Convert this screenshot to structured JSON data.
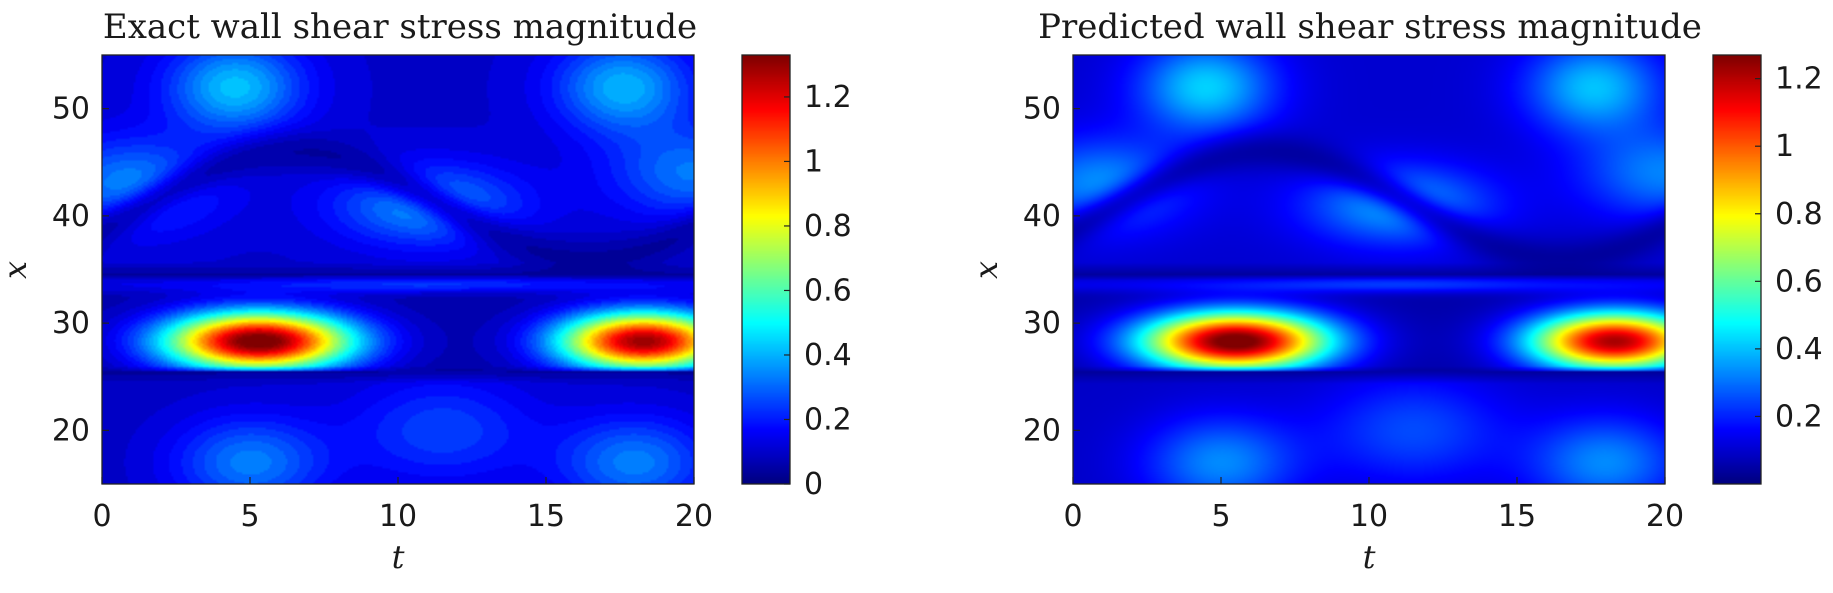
{
  "chart_data": [
    {
      "type": "heatmap",
      "title": "Exact wall shear stress magnitude",
      "xlabel": "t",
      "ylabel": "x",
      "xlim": [
        0,
        20
      ],
      "ylim": [
        15,
        55
      ],
      "xticks": [
        0,
        5,
        10,
        15,
        20
      ],
      "yticks": [
        20,
        30,
        40,
        50
      ],
      "colormap": "jet",
      "banded": true,
      "colorbar": {
        "min": 0,
        "max": 1.33,
        "ticks": [
          0,
          0.2,
          0.4,
          0.6,
          0.8,
          1,
          1.2
        ],
        "tick_labels": [
          "0",
          "0.2",
          "0.4",
          "0.6",
          "0.8",
          "1",
          "1.2"
        ]
      },
      "peaks": [
        {
          "t": 5.3,
          "x": 28.3,
          "value": 1.33
        },
        {
          "t": 18.3,
          "x": 28.3,
          "value": 1.25
        }
      ]
    },
    {
      "type": "heatmap",
      "title": "Predicted wall shear stress magnitude",
      "xlabel": "t",
      "ylabel": "x",
      "xlim": [
        0,
        20
      ],
      "ylim": [
        15,
        55
      ],
      "xticks": [
        0,
        5,
        10,
        15,
        20
      ],
      "yticks": [
        20,
        30,
        40,
        50
      ],
      "colormap": "jet",
      "banded": false,
      "colorbar": {
        "min": 0,
        "max": 1.27,
        "ticks": [
          0.2,
          0.4,
          0.6,
          0.8,
          1,
          1.2
        ],
        "tick_labels": [
          "0.2",
          "0.4",
          "0.6",
          "0.8",
          "1",
          "1.2"
        ]
      },
      "peaks": [
        {
          "t": 5.5,
          "x": 28.3,
          "value": 1.27
        },
        {
          "t": 18.3,
          "x": 28.3,
          "value": 1.17
        }
      ]
    }
  ]
}
